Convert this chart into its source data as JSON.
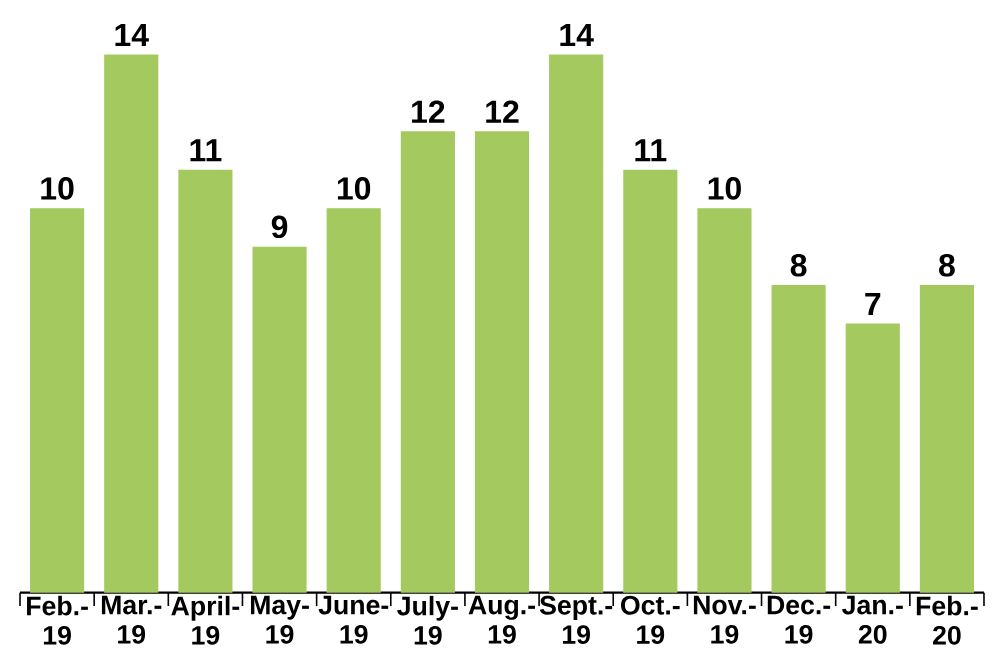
{
  "chart_data": {
    "type": "bar",
    "categories": [
      "Feb.- 19",
      "Mar.- 19",
      "April- 19",
      "May- 19",
      "June- 19",
      "July- 19",
      "Aug.- 19",
      "Sept.- 19",
      "Oct.- 19",
      "Nov.- 19",
      "Dec.- 19",
      "Jan.- 20",
      "Feb.- 20"
    ],
    "values": [
      10,
      14,
      11,
      9,
      10,
      12,
      12,
      14,
      11,
      10,
      8,
      7,
      8
    ],
    "color": "#a3c95f",
    "data_labels": true
  }
}
